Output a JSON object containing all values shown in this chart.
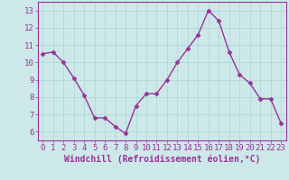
{
  "x": [
    0,
    1,
    2,
    3,
    4,
    5,
    6,
    7,
    8,
    9,
    10,
    11,
    12,
    13,
    14,
    15,
    16,
    17,
    18,
    19,
    20,
    21,
    22,
    23
  ],
  "y": [
    10.5,
    10.6,
    10.0,
    9.1,
    8.1,
    6.8,
    6.8,
    6.3,
    5.9,
    7.5,
    8.2,
    8.2,
    9.0,
    10.0,
    10.8,
    11.6,
    13.0,
    12.4,
    10.6,
    9.3,
    8.8,
    7.9,
    7.9,
    6.5
  ],
  "line_color": "#993399",
  "marker": "D",
  "marker_size": 2.5,
  "linewidth": 1.0,
  "xlabel": "Windchill (Refroidissement éolien,°C)",
  "ylim": [
    5.5,
    13.5
  ],
  "xlim": [
    -0.5,
    23.5
  ],
  "yticks": [
    6,
    7,
    8,
    9,
    10,
    11,
    12,
    13
  ],
  "xticks": [
    0,
    1,
    2,
    3,
    4,
    5,
    6,
    7,
    8,
    9,
    10,
    11,
    12,
    13,
    14,
    15,
    16,
    17,
    18,
    19,
    20,
    21,
    22,
    23
  ],
  "grid_color": "#b0d8d8",
  "bg_color": "#cce8e8",
  "xlabel_fontsize": 7,
  "tick_fontsize": 6.5
}
